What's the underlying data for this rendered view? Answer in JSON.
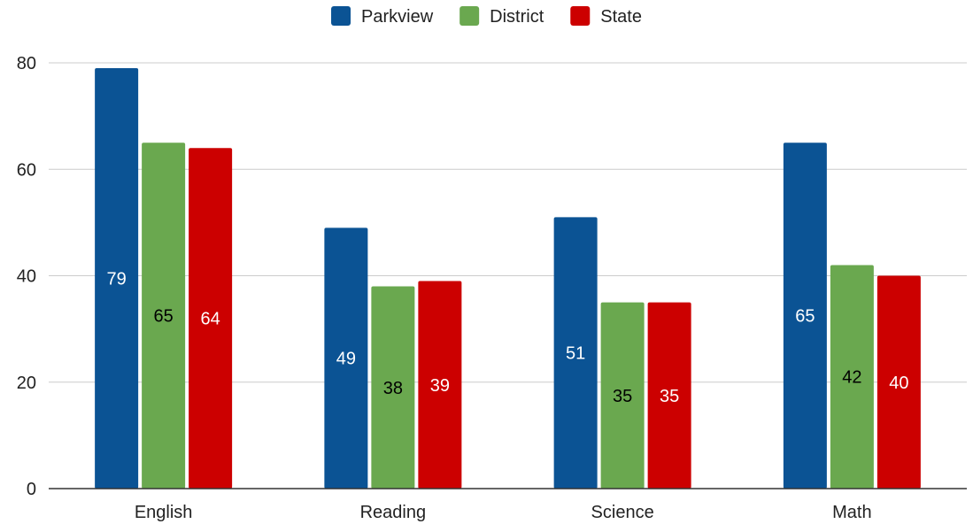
{
  "chart_data": {
    "type": "bar",
    "categories": [
      "English",
      "Reading",
      "Science",
      "Math"
    ],
    "series": [
      {
        "name": "Parkview",
        "values": [
          79,
          49,
          51,
          65
        ],
        "color": "#0b5394",
        "label_color": "#ffffff"
      },
      {
        "name": "District",
        "values": [
          65,
          38,
          35,
          42
        ],
        "color": "#6aa84f",
        "label_color": "#000000"
      },
      {
        "name": "State",
        "values": [
          64,
          39,
          35,
          40
        ],
        "color": "#cc0000",
        "label_color": "#ffffff"
      }
    ],
    "ylim": [
      0,
      80
    ],
    "yticks": [
      0,
      20,
      40,
      60,
      80
    ],
    "grid": true,
    "legend_position": "top-center",
    "data_labels": "center",
    "title": "",
    "xlabel": "",
    "ylabel": ""
  }
}
